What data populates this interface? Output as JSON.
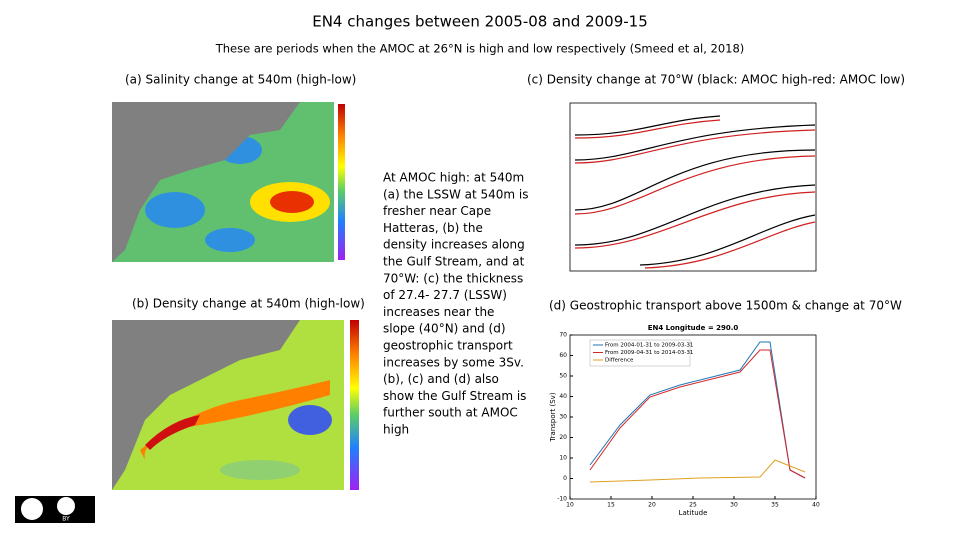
{
  "header": {
    "title": "EN4 changes between 2005-08 and 2009-15",
    "subtitle": "These are periods when the AMOC at 26°N is high and low respectively (Smeed et al, 2018)"
  },
  "panels": [
    {
      "label": "(a) Salinity change at 540m (high-low)"
    },
    {
      "label": "(b) Density change at 540m (high-low)"
    },
    {
      "label": "(c) Density change at 70°W (black: AMOC high-red: AMOC low)"
    },
    {
      "label": "(d) Geostrophic transport above 1500m & change at 70°W",
      "plot": {
        "title": "EN4 Longitude = 290.0",
        "xlabel": "Latitude",
        "ylabel": "Transport (Sv)",
        "xticks": [
          10,
          15,
          20,
          25,
          30,
          35,
          40
        ],
        "yticks": [
          -10,
          0,
          10,
          20,
          30,
          40,
          50,
          60,
          70
        ],
        "legend": [
          "From 2004-01-31 to 2009-03-31",
          "From 2009-04-31 to 2014-03-31",
          "Difference"
        ]
      }
    }
  ],
  "note": {
    "lines": [
      "At AMOC high: at 540m",
      "(a) the LSSW at 540m is",
      "fresher near Cape",
      "Hatteras, (b) the",
      "density increases along",
      "the Gulf Stream, and at",
      "70°W: (c) the thickness",
      "of 27.4- 27.7 (LSSW)",
      "increases near the",
      "slope (40°N) and (d)",
      "geostrophic transport",
      "increases by some 3Sv.",
      "(b), (c) and (d) also",
      "show the Gulf Stream is",
      "further south at AMOC",
      "high"
    ]
  },
  "license": {
    "badge": "BY"
  }
}
